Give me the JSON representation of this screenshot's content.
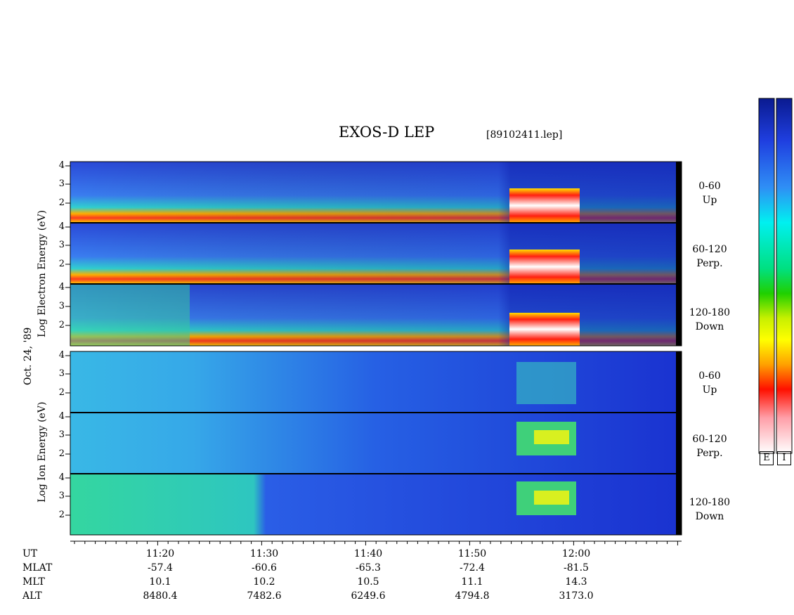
{
  "chart_data": {
    "type": "heatmap",
    "title": "EXOS-D LEP",
    "file_label": "[89102411.lep]",
    "date_label": "Oct. 24, '89",
    "electron_ylabel": "Log  Electron  Energy  (eV)",
    "ion_ylabel": "Log  Ion  Energy  (eV)",
    "y_ticks": [
      "4",
      "3",
      "2"
    ],
    "panels": [
      {
        "species": "Electron",
        "pitch": "0-60",
        "dir": "Up"
      },
      {
        "species": "Electron",
        "pitch": "60-120",
        "dir": "Perp."
      },
      {
        "species": "Electron",
        "pitch": "120-180",
        "dir": "Down"
      },
      {
        "species": "Ion",
        "pitch": "0-60",
        "dir": "Up"
      },
      {
        "species": "Ion",
        "pitch": "60-120",
        "dir": "Perp."
      },
      {
        "species": "Ion",
        "pitch": "120-180",
        "dir": "Down"
      }
    ],
    "x_axis": {
      "rows": [
        "UT",
        "MLAT",
        "MLT",
        "ALT"
      ],
      "columns": [
        {
          "UT": "11:20",
          "MLAT": "-57.4",
          "MLT": "10.1",
          "ALT": "8480.4"
        },
        {
          "UT": "11:30",
          "MLAT": "-60.6",
          "MLT": "10.2",
          "ALT": "7482.6"
        },
        {
          "UT": "11:40",
          "MLAT": "-65.3",
          "MLT": "10.5",
          "ALT": "6249.6"
        },
        {
          "UT": "11:50",
          "MLAT": "-72.4",
          "MLT": "11.1",
          "ALT": "4794.8"
        },
        {
          "UT": "12:00",
          "MLAT": "-81.5",
          "MLT": "14.3",
          "ALT": "3173.0"
        }
      ]
    },
    "colorbar_labels": [
      "E",
      "I"
    ]
  }
}
